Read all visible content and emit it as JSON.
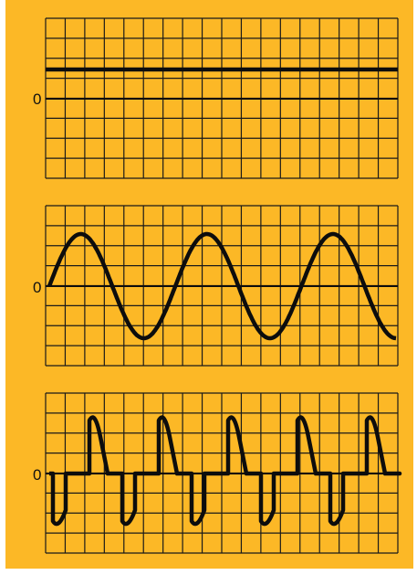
{
  "background_color": "#fcb826",
  "grid_color": "#1a1a1a",
  "trace_color": "#0d0d0d",
  "panels": [
    {
      "name": "dc-signal",
      "zero_label": "0",
      "waveform": "constant",
      "level": 1
    },
    {
      "name": "sine-signal",
      "zero_label": "0",
      "waveform": "sine",
      "cycles": 2.75
    },
    {
      "name": "pulse-signal",
      "zero_label": "0",
      "waveform": "pulses",
      "pulse_count": 5
    }
  ]
}
